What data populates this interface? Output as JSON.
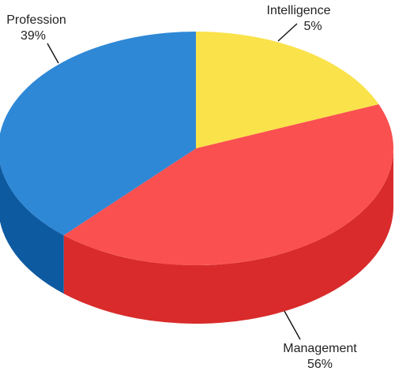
{
  "chart_data": {
    "type": "pie",
    "style": "3d",
    "slices": [
      {
        "label": "Intelligence",
        "value": 5,
        "display": "5%",
        "color": "#FAE24B",
        "side_color": "#E8C935"
      },
      {
        "label": "Management",
        "value": 56,
        "display": "56%",
        "color": "#FA5050",
        "side_color": "#D92B2B"
      },
      {
        "label": "Profession",
        "value": 39,
        "display": "39%",
        "color": "#2E88D6",
        "side_color": "#0D5AA0"
      }
    ]
  }
}
